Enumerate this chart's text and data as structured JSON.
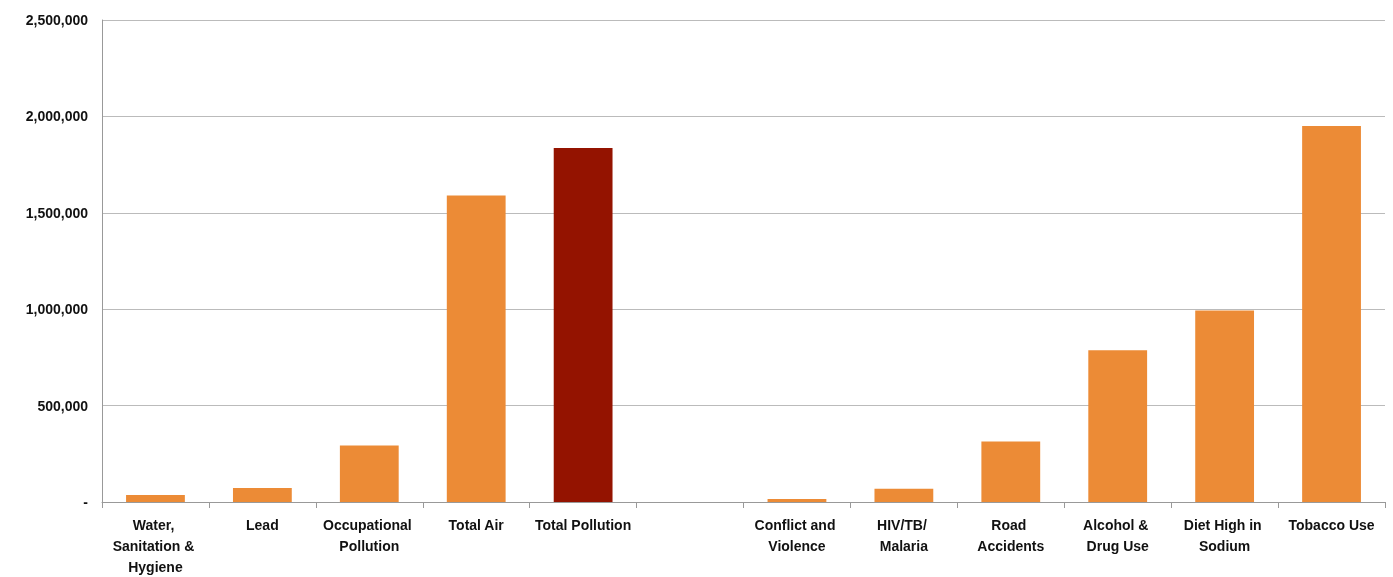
{
  "chart_data": {
    "type": "bar",
    "categories": [
      "Water, Sanitation & Hygiene",
      "Lead",
      "Occupational Pollution",
      "Total Air",
      "Total Pollution",
      null,
      "Conflict and Violence",
      "HIV/TB/ Malaria",
      "Road Accidents",
      "Alcohol & Drug Use",
      "Diet High in Sodium",
      "Tobacco Use"
    ],
    "values": [
      36000,
      72000,
      293000,
      1590000,
      1836000,
      null,
      15000,
      69000,
      314000,
      787000,
      993000,
      1950000
    ],
    "colors": [
      "#ec8b36",
      "#ec8b36",
      "#ec8b36",
      "#ec8b36",
      "#941300",
      null,
      "#ec8b36",
      "#ec8b36",
      "#ec8b36",
      "#ec8b36",
      "#ec8b36",
      "#ec8b36"
    ],
    "ylim": [
      0,
      2500000
    ],
    "yticks": [
      {
        "value": 0,
        "label": "-"
      },
      {
        "value": 500000,
        "label": "500,000"
      },
      {
        "value": 1000000,
        "label": "1,000,000"
      },
      {
        "value": 1500000,
        "label": "1,500,000"
      },
      {
        "value": 2000000,
        "label": "2,000,000"
      },
      {
        "value": 2500000,
        "label": "2,500,000"
      }
    ],
    "grid": "y"
  }
}
